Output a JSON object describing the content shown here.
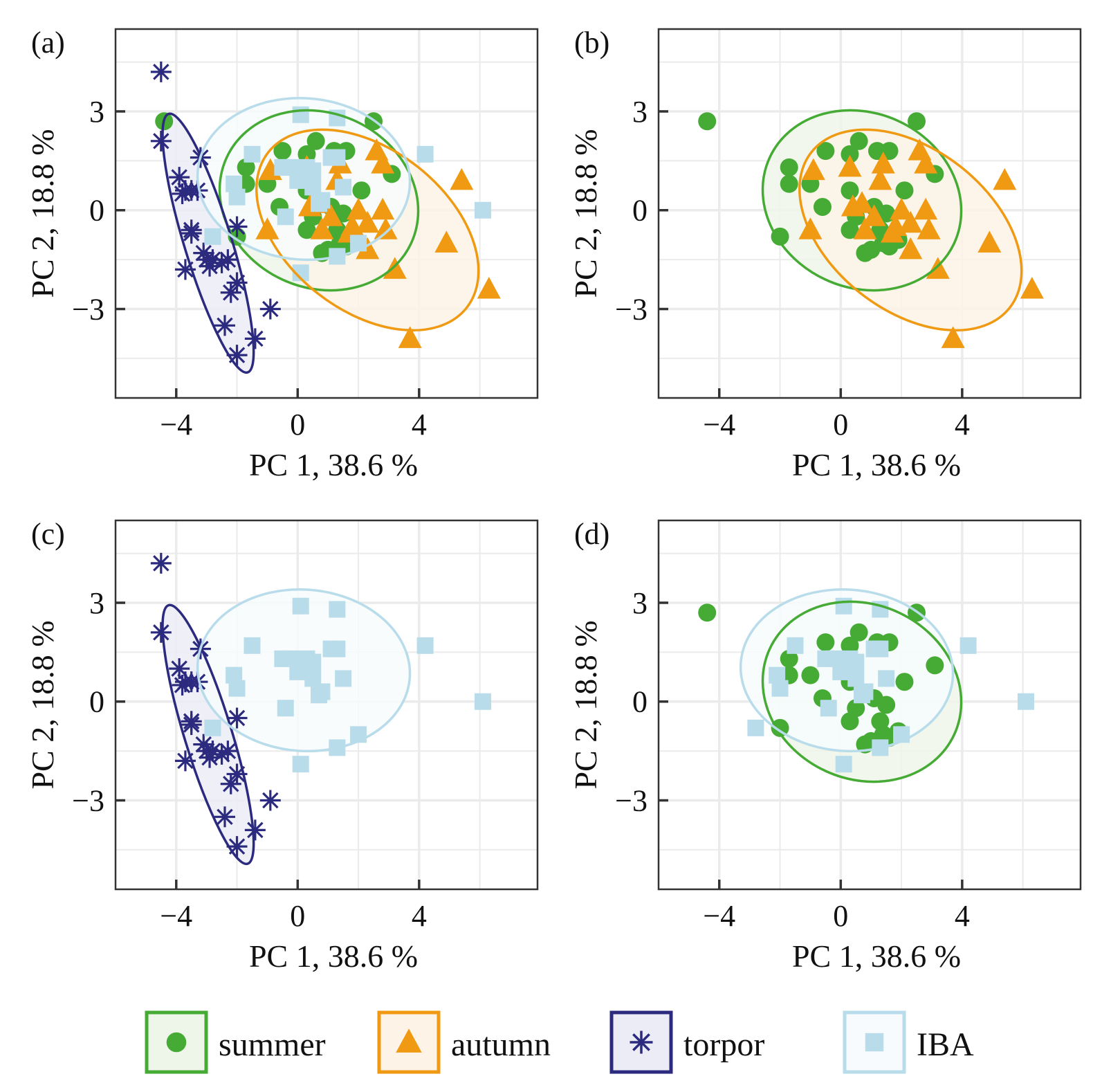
{
  "chart_data": {
    "type": "scatter",
    "xlabel": "PC 1, 38.6 %",
    "ylabel": "PC 2, 18.8 %",
    "xlim": [
      -6.0,
      7.9
    ],
    "ylim": [
      -5.7,
      5.5
    ],
    "xticks": [
      -4,
      0,
      4
    ],
    "xtick_labels": [
      "−4",
      "0",
      "4"
    ],
    "yticks": [
      3,
      0,
      -3
    ],
    "ytick_labels": [
      "3",
      "0",
      "−3"
    ],
    "x_minor_grid": [
      -6,
      -2,
      2,
      6
    ],
    "y_minor_grid": [
      4.5,
      1.5,
      -1.5,
      -4.5
    ],
    "grid": true,
    "legend_position": "bottom",
    "groups": {
      "summer": {
        "label": "summer",
        "marker": "circle",
        "color": "#45ab34",
        "fill": "#eef6ea",
        "ellipse": {
          "cx": 0.7,
          "cy": 0.3,
          "a": 3.35,
          "b": 2.65,
          "angle_deg": -25
        },
        "points": [
          [
            -4.4,
            2.7
          ],
          [
            2.5,
            2.7
          ],
          [
            -2.0,
            -0.8
          ],
          [
            -1.7,
            1.3
          ],
          [
            -1.7,
            0.8
          ],
          [
            -1.0,
            0.8
          ],
          [
            -0.5,
            1.8
          ],
          [
            0.3,
            1.7
          ],
          [
            0.6,
            2.1
          ],
          [
            1.2,
            1.8
          ],
          [
            1.6,
            1.8
          ],
          [
            3.1,
            1.1
          ],
          [
            -0.6,
            0.1
          ],
          [
            0.3,
            0.6
          ],
          [
            0.5,
            -0.2
          ],
          [
            0.3,
            -0.6
          ],
          [
            1.1,
            0.1
          ],
          [
            1.5,
            -0.1
          ],
          [
            1.4,
            -1.0
          ],
          [
            1.0,
            -1.2
          ],
          [
            1.9,
            -0.9
          ],
          [
            1.6,
            -1.1
          ],
          [
            0.8,
            -1.3
          ],
          [
            2.1,
            0.6
          ],
          [
            1.3,
            -0.6
          ]
        ]
      },
      "autumn": {
        "label": "autumn",
        "marker": "triangle",
        "color": "#ef9a12",
        "fill": "#fdf3e6",
        "ellipse": {
          "cx": 2.3,
          "cy": -0.6,
          "a": 4.15,
          "b": 2.45,
          "angle_deg": -38
        },
        "points": [
          [
            2.6,
            1.8
          ],
          [
            2.8,
            1.4
          ],
          [
            5.4,
            0.9
          ],
          [
            -0.9,
            1.2
          ],
          [
            0.3,
            1.3
          ],
          [
            1.4,
            1.4
          ],
          [
            1.3,
            0.9
          ],
          [
            0.7,
            0.2
          ],
          [
            2.0,
            0.0
          ],
          [
            2.8,
            0.0
          ],
          [
            1.1,
            -0.2
          ],
          [
            0.8,
            -0.6
          ],
          [
            1.8,
            -0.5
          ],
          [
            2.9,
            -0.6
          ],
          [
            1.7,
            -0.7
          ],
          [
            -1.0,
            -0.6
          ],
          [
            2.3,
            -1.2
          ],
          [
            4.9,
            -1.0
          ],
          [
            3.2,
            -1.8
          ],
          [
            6.3,
            -2.4
          ],
          [
            3.7,
            -3.9
          ],
          [
            0.4,
            0.1
          ],
          [
            2.3,
            -0.4
          ]
        ]
      },
      "torpor": {
        "label": "torpor",
        "marker": "asterisk",
        "color": "#2b2a7f",
        "fill": "#ececf6",
        "ellipse": {
          "cx": -2.95,
          "cy": -1.0,
          "a": 4.45,
          "b": 0.72,
          "angle_deg": -73
        },
        "points": [
          [
            -4.5,
            4.2
          ],
          [
            -4.5,
            2.1
          ],
          [
            -3.2,
            1.6
          ],
          [
            -3.9,
            1.0
          ],
          [
            -3.7,
            0.6
          ],
          [
            -3.5,
            0.6
          ],
          [
            -3.8,
            0.5
          ],
          [
            -3.3,
            0.6
          ],
          [
            -2.0,
            -0.5
          ],
          [
            -3.5,
            -0.6
          ],
          [
            -3.5,
            -0.7
          ],
          [
            -3.1,
            -1.3
          ],
          [
            -3.0,
            -1.5
          ],
          [
            -2.8,
            -1.5
          ],
          [
            -2.9,
            -1.7
          ],
          [
            -3.7,
            -1.8
          ],
          [
            -2.3,
            -1.5
          ],
          [
            -2.5,
            -1.6
          ],
          [
            -2.0,
            -2.2
          ],
          [
            -2.2,
            -2.5
          ],
          [
            -0.9,
            -3.0
          ],
          [
            -2.4,
            -3.5
          ],
          [
            -1.4,
            -3.9
          ],
          [
            -2.0,
            -4.4
          ]
        ]
      },
      "IBA": {
        "label": "IBA",
        "marker": "square",
        "color": "#b9dceb",
        "fill": "#f7fbfd",
        "ellipse": {
          "cx": 0.2,
          "cy": 0.95,
          "a": 3.5,
          "b": 2.45,
          "angle_deg": -4
        },
        "points": [
          [
            0.1,
            2.9
          ],
          [
            1.3,
            2.8
          ],
          [
            4.2,
            1.7
          ],
          [
            -1.5,
            1.7
          ],
          [
            -0.5,
            1.3
          ],
          [
            -0.2,
            1.3
          ],
          [
            0.1,
            1.2
          ],
          [
            0.3,
            1.3
          ],
          [
            0.5,
            1.2
          ],
          [
            1.1,
            1.6
          ],
          [
            1.3,
            1.6
          ],
          [
            -2.1,
            0.8
          ],
          [
            -2.0,
            0.4
          ],
          [
            0.0,
            0.9
          ],
          [
            0.5,
            0.7
          ],
          [
            0.8,
            0.3
          ],
          [
            0.7,
            0.2
          ],
          [
            1.5,
            0.7
          ],
          [
            -0.4,
            -0.2
          ],
          [
            6.1,
            0.0
          ],
          [
            -2.8,
            -0.8
          ],
          [
            2.0,
            -1.0
          ],
          [
            1.3,
            -1.4
          ],
          [
            0.1,
            -1.9
          ]
        ]
      }
    },
    "panels": [
      {
        "id": "a",
        "label": "(a)",
        "groups": [
          "summer",
          "autumn",
          "torpor",
          "IBA"
        ]
      },
      {
        "id": "b",
        "label": "(b)",
        "groups": [
          "summer",
          "autumn"
        ]
      },
      {
        "id": "c",
        "label": "(c)",
        "groups": [
          "torpor",
          "IBA"
        ]
      },
      {
        "id": "d",
        "label": "(d)",
        "groups": [
          "summer",
          "IBA"
        ]
      }
    ],
    "legend": [
      "summer",
      "autumn",
      "torpor",
      "IBA"
    ]
  }
}
